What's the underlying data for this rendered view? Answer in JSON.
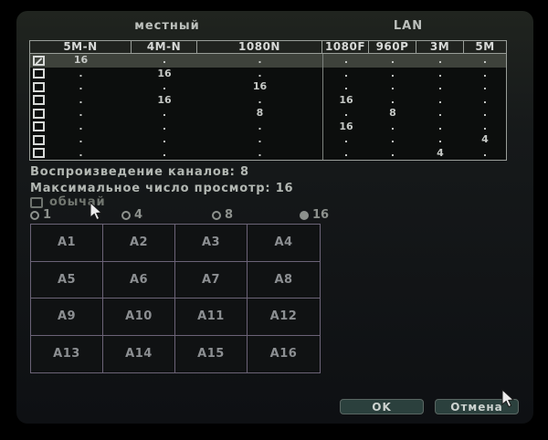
{
  "dialog": {
    "sections": {
      "local": "местный",
      "lan": "LAN"
    },
    "table": {
      "columns": [
        "5M-N",
        "4M-N",
        "1080N",
        "1080F",
        "960P",
        "3M",
        "5M"
      ],
      "rows": [
        {
          "checked": true,
          "selected": true,
          "values": [
            "16",
            ".",
            ".",
            ".",
            ".",
            ".",
            "."
          ]
        },
        {
          "checked": false,
          "selected": false,
          "values": [
            ".",
            "16",
            ".",
            ".",
            ".",
            ".",
            "."
          ]
        },
        {
          "checked": false,
          "selected": false,
          "values": [
            ".",
            ".",
            "16",
            ".",
            ".",
            ".",
            "."
          ]
        },
        {
          "checked": false,
          "selected": false,
          "values": [
            ".",
            "16",
            ".",
            "16",
            ".",
            ".",
            "."
          ]
        },
        {
          "checked": false,
          "selected": false,
          "values": [
            ".",
            ".",
            "8",
            ".",
            "8",
            ".",
            "."
          ]
        },
        {
          "checked": false,
          "selected": false,
          "values": [
            ".",
            ".",
            ".",
            "16",
            ".",
            ".",
            "."
          ]
        },
        {
          "checked": false,
          "selected": false,
          "values": [
            ".",
            ".",
            ".",
            ".",
            ".",
            ".",
            "4"
          ]
        },
        {
          "checked": false,
          "selected": false,
          "values": [
            ".",
            ".",
            ".",
            ".",
            ".",
            "4",
            "."
          ]
        }
      ]
    },
    "playback_line": "Воспроизведение каналов: 8",
    "max_view_line": "Максимальное число просмотр: 16",
    "custom_label": "обычай",
    "custom_checked": false,
    "split_options": [
      {
        "label": "1",
        "selected": false
      },
      {
        "label": "4",
        "selected": false
      },
      {
        "label": "8",
        "selected": false
      },
      {
        "label": "16",
        "selected": true
      }
    ],
    "channels": [
      "A1",
      "A2",
      "A3",
      "A4",
      "A5",
      "A6",
      "A7",
      "A8",
      "A9",
      "A10",
      "A11",
      "A12",
      "A13",
      "A14",
      "A15",
      "A16"
    ],
    "buttons": {
      "ok": "OK",
      "cancel": "Отмена"
    },
    "colors": {
      "dialog_top": "#20241f",
      "dialog_bottom": "#0e1013",
      "table_border": "#999e99",
      "row_highlight": "#3e423b",
      "grid_border": "#6b6377",
      "button_bg": "#2b403d",
      "button_border": "#5a6763",
      "button_text": "#ccd2cf"
    }
  }
}
